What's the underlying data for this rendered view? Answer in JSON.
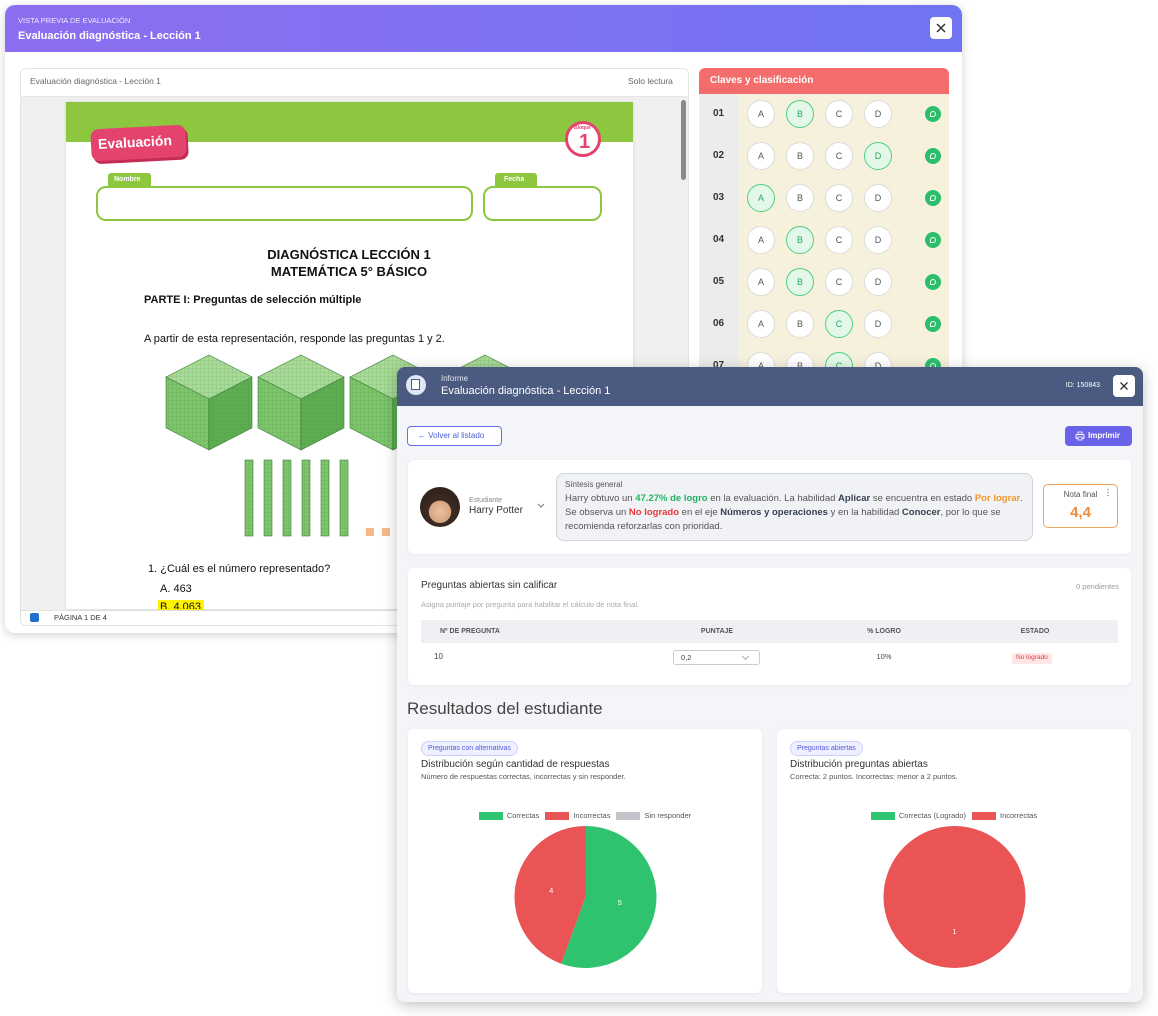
{
  "preview": {
    "eyebrow": "VISTA PREVIA DE EVALUACIÓN",
    "title": "Evaluación diagnóstica - Lección 1",
    "document": {
      "name": "Evaluación diagnóstica - Lección 1",
      "mode": "Solo lectura",
      "badge": "Evaluación",
      "block_label": "Bloque",
      "block_number": "1",
      "name_label": "Nombre",
      "date_label": "Fecha",
      "heading": [
        "DIAGNÓSTICA LECCIÓN 1",
        "MATEMÁTICA 5° BÁSICO"
      ],
      "part": "PARTE I: Preguntas de selección múltiple",
      "instruction": "A partir de esta representación, responde las preguntas 1 y 2.",
      "question": "1.  ¿Cuál es el número representado?",
      "choices": [
        "A.  463",
        "B.  4.063"
      ],
      "page": "PÁGINA 1 DE 4"
    },
    "keys": {
      "title": "Claves y clasificación",
      "options": [
        "A",
        "B",
        "C",
        "D"
      ],
      "rows": [
        {
          "number": "01",
          "correct": "B"
        },
        {
          "number": "02",
          "correct": "D"
        },
        {
          "number": "03",
          "correct": "A"
        },
        {
          "number": "04",
          "correct": "B"
        },
        {
          "number": "05",
          "correct": "B"
        },
        {
          "number": "06",
          "correct": "C"
        },
        {
          "number": "07",
          "correct": "C"
        }
      ]
    }
  },
  "report": {
    "eyebrow": "Informe",
    "title": "Evaluación diagnóstica - Lección 1",
    "id": "ID: 150843",
    "back": "← Volver al listado",
    "print": "Imprimir",
    "student_label": "Estudiante",
    "student": "Harry Potter",
    "summary_title": "Síntesis general",
    "summary": [
      {
        "text": "Harry obtuvo un "
      },
      {
        "text": "47.27% de logro",
        "color": "#22b45e"
      },
      {
        "text": " en la evaluación. La habilidad "
      },
      {
        "text": "Aplicar",
        "color": "#374151"
      },
      {
        "text": " se encuentra en estado "
      },
      {
        "text": "Por lograr",
        "color": "#f0962e"
      },
      {
        "text": ". Se observa un "
      },
      {
        "text": "No logrado",
        "color": "#e5383b"
      },
      {
        "text": " en el eje "
      },
      {
        "text": "Números y operaciones",
        "color": "#374151"
      },
      {
        "text": " y en la habilidad "
      },
      {
        "text": "Conocer",
        "color": "#374151"
      },
      {
        "text": ", por lo que se recomienda reforzarlas con prioridad."
      }
    ],
    "grade_label": "Nota final",
    "grade": "4,4",
    "open": {
      "title": "Preguntas abiertas sin calificar",
      "pending": "0 pendientes",
      "hint": "Asigna puntaje por pregunta para habilitar el cálculo de nota final.",
      "columns": [
        "Nº DE PREGUNTA",
        "PUNTAJE",
        "% LOGRO",
        "ESTADO"
      ],
      "rows": [
        [
          "10",
          "0,2",
          "10%",
          "No logrado"
        ]
      ]
    },
    "results_title": "Resultados del estudiante"
  },
  "chart_data": [
    {
      "type": "pie",
      "tag": "Preguntas con alternativas",
      "title": "Distribución según cantidad de respuestas",
      "subtitle": "Número de respuestas correctas, incorrectas y sin responder.",
      "categories": [
        "Correctas",
        "Incorrectas",
        "Sin responder"
      ],
      "values": [
        5,
        4,
        0
      ],
      "colors": [
        "#2fc36f",
        "#ea5455",
        "#c3c3cc"
      ]
    },
    {
      "type": "pie",
      "tag": "Preguntas abiertas",
      "title": "Distribución preguntas abiertas",
      "subtitle": "Correcta: 2 puntos. Incorrectas: menor a 2 puntos.",
      "categories": [
        "Correctas (Logrado)",
        "Incorrectas"
      ],
      "values": [
        0,
        1
      ],
      "colors": [
        "#2fc36f",
        "#ea5455"
      ]
    }
  ]
}
